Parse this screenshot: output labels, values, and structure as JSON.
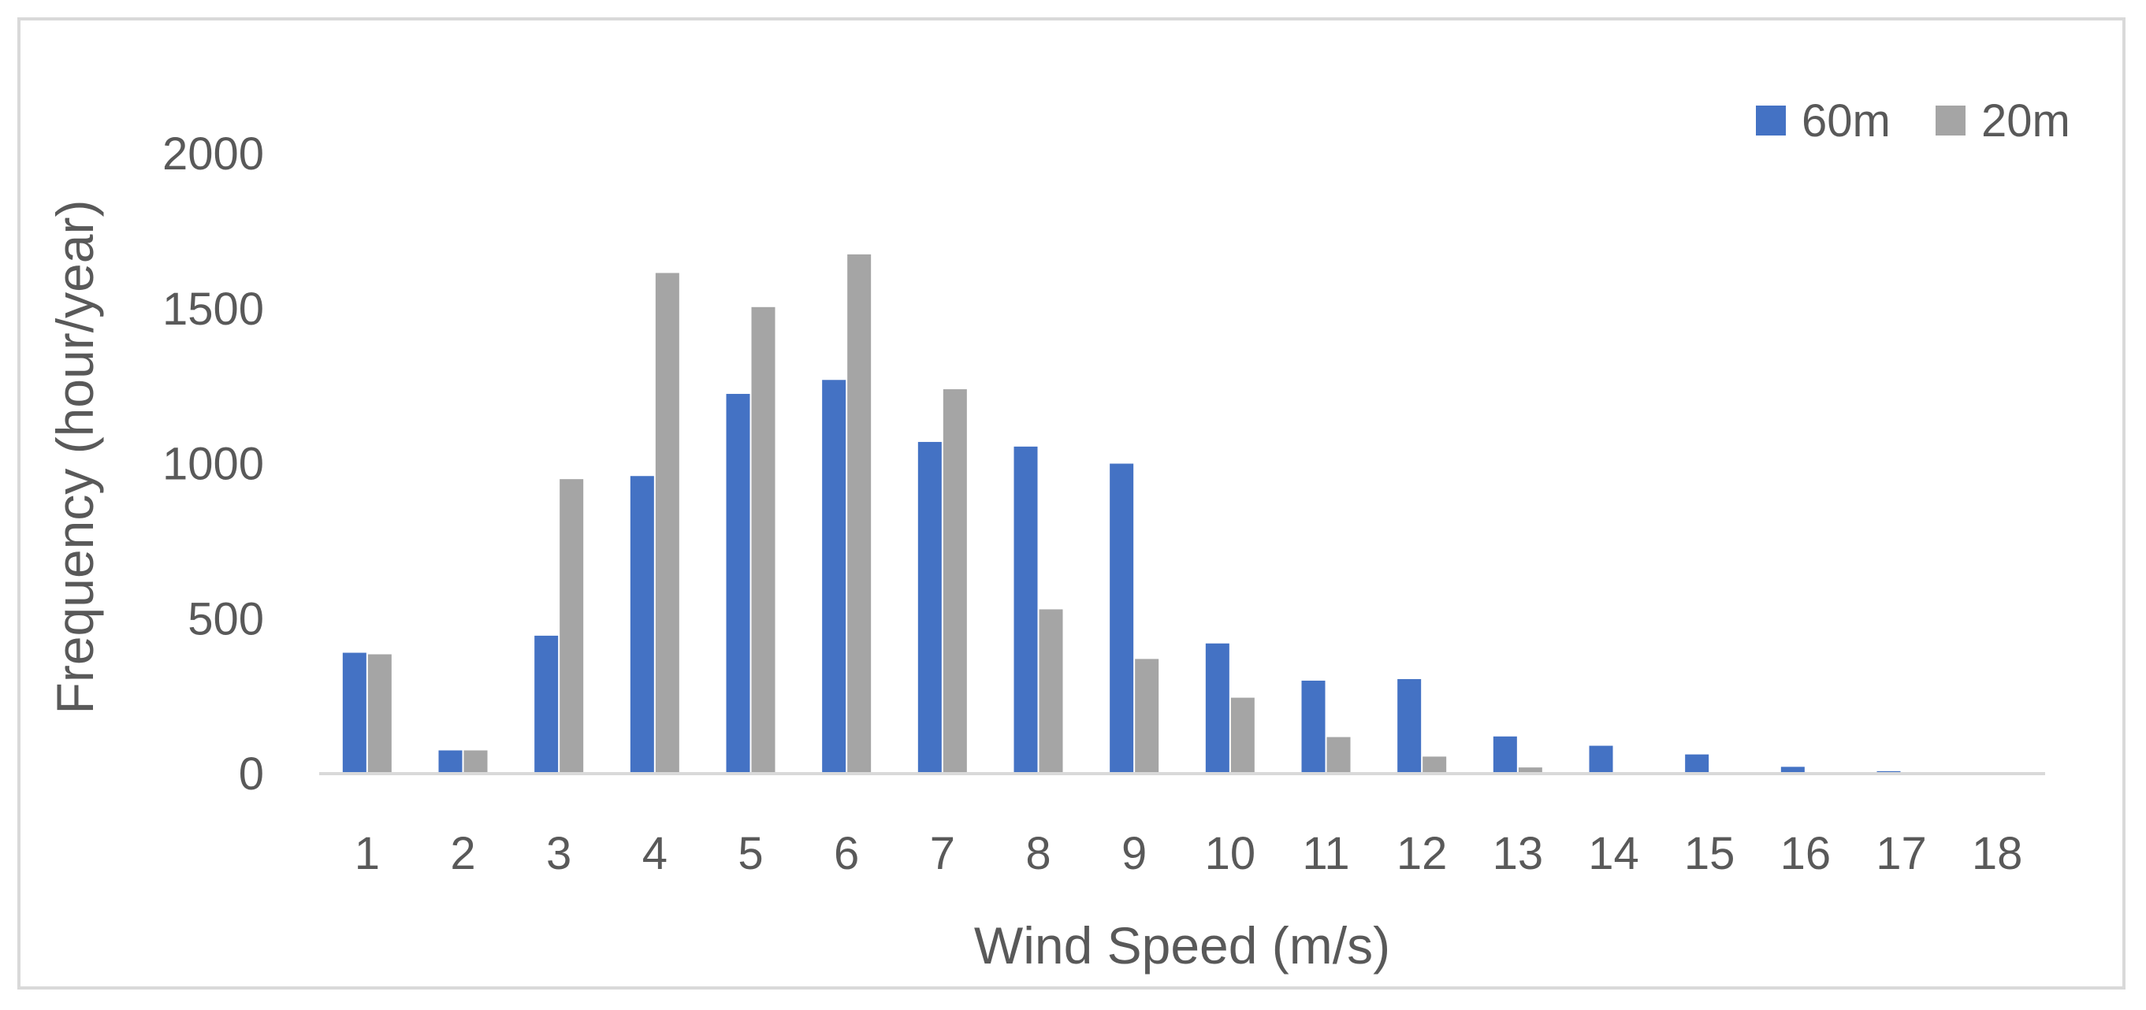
{
  "chart_data": {
    "type": "bar",
    "title": "",
    "xlabel": "Wind Speed (m/s)",
    "ylabel": "Frequency (hour/year)",
    "categories": [
      "1",
      "2",
      "3",
      "4",
      "5",
      "6",
      "7",
      "8",
      "9",
      "10",
      "11",
      "12",
      "13",
      "14",
      "15",
      "16",
      "17",
      "18"
    ],
    "series": [
      {
        "name": "60m",
        "color": "#4472c4",
        "values": [
          390,
          75,
          445,
          960,
          1225,
          1270,
          1070,
          1055,
          1000,
          420,
          300,
          305,
          120,
          90,
          62,
          22,
          8,
          0
        ]
      },
      {
        "name": "20m",
        "color": "#a5a5a5",
        "values": [
          385,
          75,
          950,
          1615,
          1505,
          1675,
          1240,
          530,
          370,
          245,
          118,
          55,
          20,
          5,
          3,
          0,
          0,
          0
        ]
      }
    ],
    "ylim": [
      0,
      2000
    ],
    "yticks": [
      "0",
      "500",
      "1000",
      "1500",
      "2000"
    ],
    "grid": false,
    "legend_position": "top-right"
  }
}
